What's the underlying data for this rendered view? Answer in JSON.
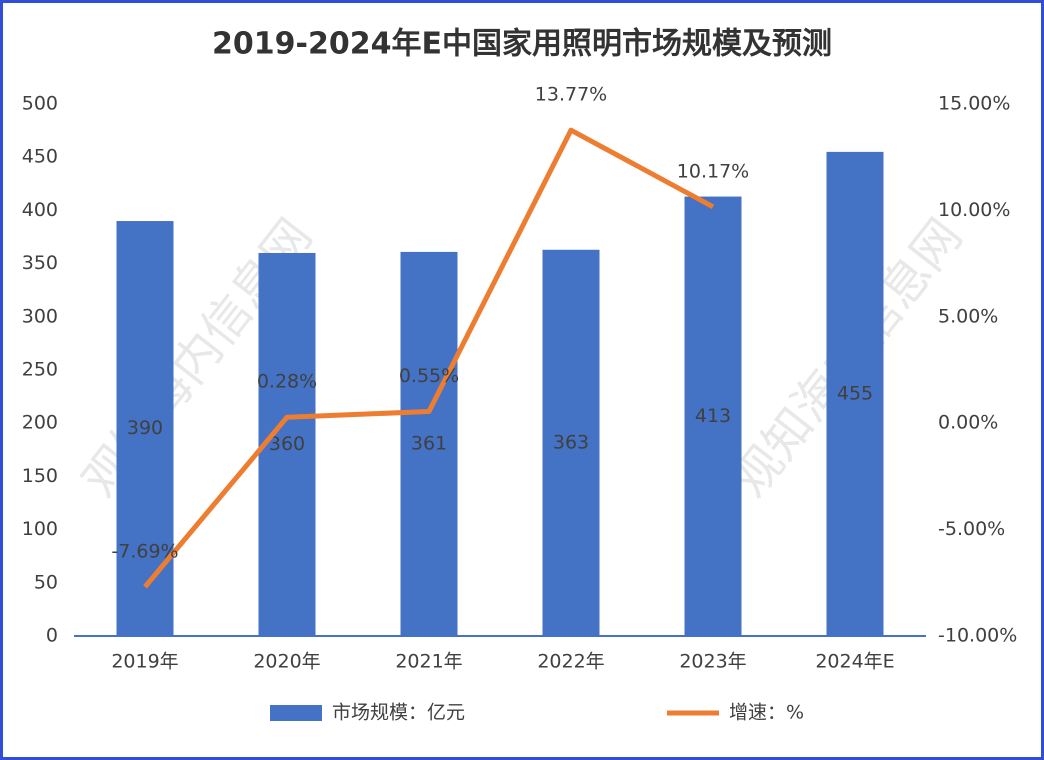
{
  "chart_data": {
    "type": "bar",
    "title": "2019-2024年E中国家用照明市场规模及预测",
    "categories": [
      "2019年",
      "2020年",
      "2021年",
      "2022年",
      "2023年",
      "2024年E"
    ],
    "series": [
      {
        "name": "市场规模：亿元",
        "type": "bar",
        "color": "#4472c4",
        "values": [
          390,
          360,
          361,
          363,
          413,
          455
        ]
      },
      {
        "name": "增速：%",
        "type": "line",
        "axis": "y2",
        "color": "#ed7d31",
        "values": [
          -7.69,
          0.28,
          0.55,
          13.77,
          10.17,
          null
        ],
        "value_labels": [
          "-7.69%",
          "0.28%",
          "0.55%",
          "13.77%",
          "10.17%",
          null
        ]
      }
    ],
    "ylim": [
      0,
      500
    ],
    "yticks": [
      0,
      50,
      100,
      150,
      200,
      250,
      300,
      350,
      400,
      450,
      500
    ],
    "y2lim": [
      -10,
      15
    ],
    "y2ticks": [
      {
        "value": -10,
        "label": "-10.00%"
      },
      {
        "value": -5,
        "label": "-5.00%"
      },
      {
        "value": 0,
        "label": "0.00%"
      },
      {
        "value": 5,
        "label": "5.00%"
      },
      {
        "value": 10,
        "label": "10.00%"
      },
      {
        "value": 15,
        "label": "15.00%"
      }
    ],
    "legend": "bottom",
    "watermark": "观知海内信息网"
  }
}
